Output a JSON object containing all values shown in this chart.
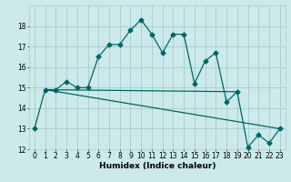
{
  "title": "",
  "xlabel": "Humidex (Indice chaleur)",
  "ylabel": "",
  "bg_color": "#cceaea",
  "grid_color": "#aacccc",
  "line_color": "#006666",
  "xlim": [
    -0.5,
    23.5
  ],
  "ylim": [
    12,
    19
  ],
  "yticks": [
    12,
    13,
    14,
    15,
    16,
    17,
    18
  ],
  "xticks": [
    0,
    1,
    2,
    3,
    4,
    5,
    6,
    7,
    8,
    9,
    10,
    11,
    12,
    13,
    14,
    15,
    16,
    17,
    18,
    19,
    20,
    21,
    22,
    23
  ],
  "line1_x": [
    0,
    1,
    2,
    3,
    4,
    5,
    6,
    7,
    8,
    9,
    10,
    11,
    12,
    13,
    14,
    15,
    16,
    17,
    18,
    19,
    20,
    21,
    22,
    23
  ],
  "line1_y": [
    13.0,
    14.9,
    14.9,
    15.3,
    15.0,
    15.0,
    16.5,
    17.1,
    17.1,
    17.8,
    18.3,
    17.6,
    16.7,
    17.6,
    17.6,
    15.2,
    16.3,
    16.7,
    14.3,
    14.8,
    12.1,
    12.7,
    12.3,
    13.0
  ],
  "line2_x": [
    1,
    19
  ],
  "line2_y": [
    14.9,
    14.8
  ],
  "line3_x": [
    1,
    23
  ],
  "line3_y": [
    14.9,
    13.0
  ],
  "marker": "D",
  "markersize": 2.5,
  "linewidth": 0.9,
  "tick_fontsize": 5.5,
  "xlabel_fontsize": 6.5
}
